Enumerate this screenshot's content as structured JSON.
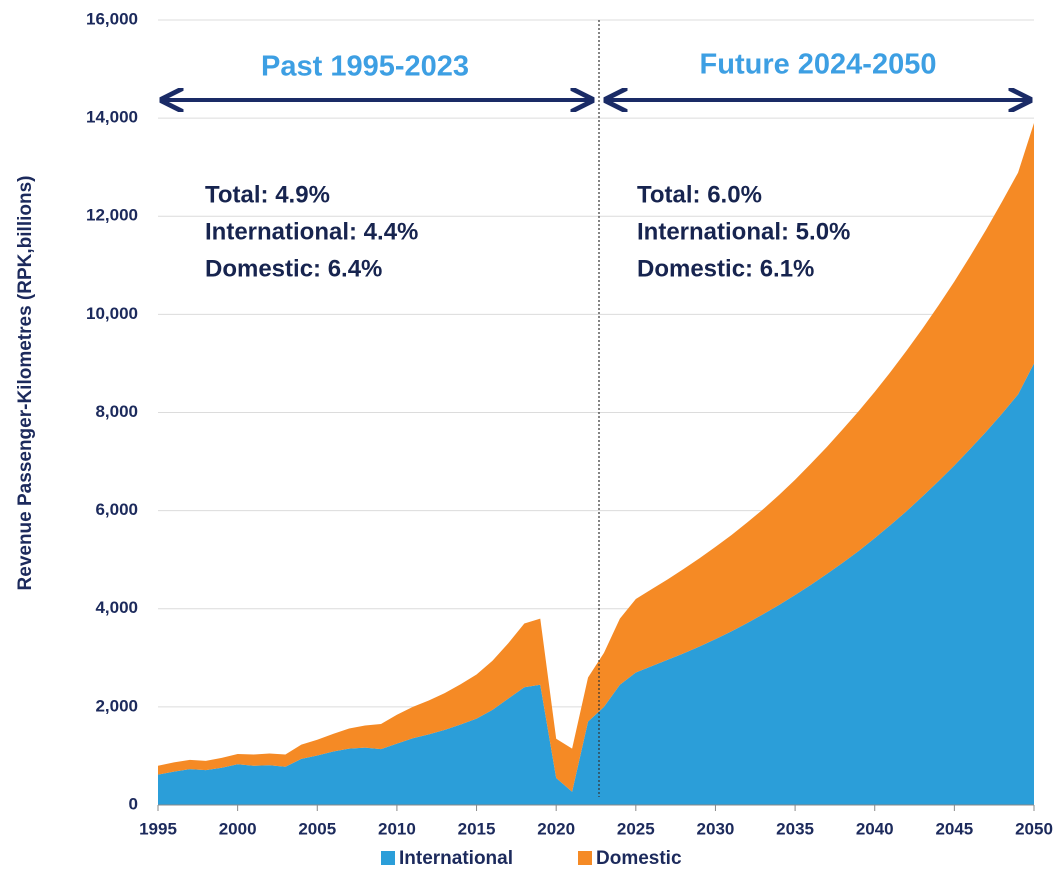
{
  "chart_data": {
    "type": "stacked_area",
    "y_label": "Revenue Passenger-Kilometres (RPK,billions)",
    "x": [
      1995,
      1996,
      1997,
      1998,
      1999,
      2000,
      2001,
      2002,
      2003,
      2004,
      2005,
      2006,
      2007,
      2008,
      2009,
      2010,
      2011,
      2012,
      2013,
      2014,
      2015,
      2016,
      2017,
      2018,
      2019,
      2020,
      2021,
      2022,
      2023,
      2024,
      2025,
      2026,
      2027,
      2028,
      2029,
      2030,
      2031,
      2032,
      2033,
      2034,
      2035,
      2036,
      2037,
      2038,
      2039,
      2040,
      2041,
      2042,
      2043,
      2044,
      2045,
      2046,
      2047,
      2048,
      2049,
      2050
    ],
    "series": [
      {
        "name": "International",
        "color": "#2b9ed9",
        "values": [
          620,
          680,
          730,
          710,
          760,
          830,
          800,
          810,
          780,
          940,
          1010,
          1090,
          1150,
          1170,
          1140,
          1250,
          1360,
          1440,
          1530,
          1640,
          1760,
          1940,
          2170,
          2400,
          2450,
          550,
          270,
          1700,
          2000,
          2450,
          2700,
          2830,
          2960,
          3090,
          3230,
          3380,
          3540,
          3710,
          3890,
          4080,
          4280,
          4490,
          4710,
          4940,
          5180,
          5440,
          5710,
          5990,
          6290,
          6600,
          6920,
          7260,
          7610,
          7980,
          8370,
          9000
        ]
      },
      {
        "name": "Domestic",
        "color": "#f58a25",
        "values": [
          180,
          190,
          190,
          190,
          200,
          210,
          230,
          240,
          250,
          290,
          320,
          360,
          410,
          450,
          510,
          590,
          640,
          690,
          750,
          820,
          900,
          1000,
          1130,
          1300,
          1350,
          800,
          880,
          900,
          1100,
          1350,
          1500,
          1570,
          1640,
          1720,
          1800,
          1880,
          1960,
          2050,
          2140,
          2240,
          2350,
          2470,
          2590,
          2720,
          2850,
          2980,
          3120,
          3270,
          3420,
          3580,
          3750,
          3930,
          4120,
          4320,
          4520,
          4900
        ]
      }
    ],
    "xlim": [
      1995,
      2050
    ],
    "xticks": [
      1995,
      2000,
      2005,
      2010,
      2015,
      2020,
      2025,
      2030,
      2035,
      2040,
      2045,
      2050
    ],
    "ylim": [
      0,
      16000
    ],
    "yticks": [
      0,
      {
        "value": 2000,
        "label": "2,000"
      },
      {
        "value": 4000,
        "label": "4,000"
      },
      {
        "value": 6000,
        "label": "6,000"
      },
      {
        "value": 8000,
        "label": "8,000"
      },
      {
        "value": 10000,
        "label": "10,000"
      },
      {
        "value": 12000,
        "label": "12,000"
      },
      {
        "value": 14000,
        "label": "14,000"
      },
      {
        "value": 16000,
        "label": "16,000"
      }
    ],
    "grid": true,
    "legend": "bottom",
    "annotations": [
      "Past 1995-2023",
      "Future 2024-2050"
    ],
    "notes": [
      [
        "Total: 4.9%",
        "International: 4.4%",
        "Domestic: 6.4%"
      ],
      [
        "Total: 6.0%",
        "International: 5.0%",
        "Domestic: 6.1%"
      ]
    ]
  }
}
